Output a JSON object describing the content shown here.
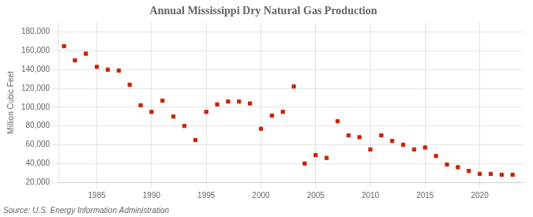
{
  "chart_data": {
    "type": "scatter",
    "title": "Annual Mississippi Dry Natural Gas Production",
    "ylabel": "Million Cubic Feet",
    "annotations": [
      "Source: U.S. Energy Information Administration"
    ],
    "x": [
      1982,
      1983,
      1984,
      1985,
      1986,
      1987,
      1988,
      1989,
      1990,
      1991,
      1992,
      1993,
      1994,
      1995,
      1996,
      1997,
      1998,
      1999,
      2000,
      2001,
      2002,
      2003,
      2004,
      2005,
      2006,
      2007,
      2008,
      2009,
      2010,
      2011,
      2012,
      2013,
      2014,
      2015,
      2016,
      2017,
      2018,
      2019,
      2020,
      2021,
      2022,
      2023
    ],
    "values": [
      165000,
      150000,
      157000,
      143000,
      140000,
      139000,
      124000,
      102000,
      95000,
      107000,
      90000,
      80000,
      65000,
      95000,
      103000,
      106000,
      106000,
      104000,
      77000,
      91000,
      95000,
      122000,
      40000,
      49000,
      46000,
      85000,
      70000,
      68000,
      55000,
      70000,
      64000,
      60000,
      55000,
      57000,
      48000,
      39000,
      36000,
      32000,
      29000,
      29000,
      28000,
      28000
    ],
    "color": "#cc2200",
    "marker": "square",
    "xlim": [
      1981.5,
      2024
    ],
    "xticks": [
      1985,
      1990,
      1995,
      2000,
      2005,
      2010,
      2015,
      2020
    ],
    "ylim": [
      20000,
      190000
    ],
    "yticks": [
      {
        "value": 20000,
        "label": "20,000"
      },
      {
        "value": 40000,
        "label": "40,000"
      },
      {
        "value": 60000,
        "label": "60,000"
      },
      {
        "value": 80000,
        "label": "80,000"
      },
      {
        "value": 100000,
        "label": "100,000"
      },
      {
        "value": 120000,
        "label": "120,000"
      },
      {
        "value": 140000,
        "label": "140,000"
      },
      {
        "value": 160000,
        "label": "160,000"
      },
      {
        "value": 180000,
        "label": "180,000"
      }
    ],
    "grid": true
  }
}
